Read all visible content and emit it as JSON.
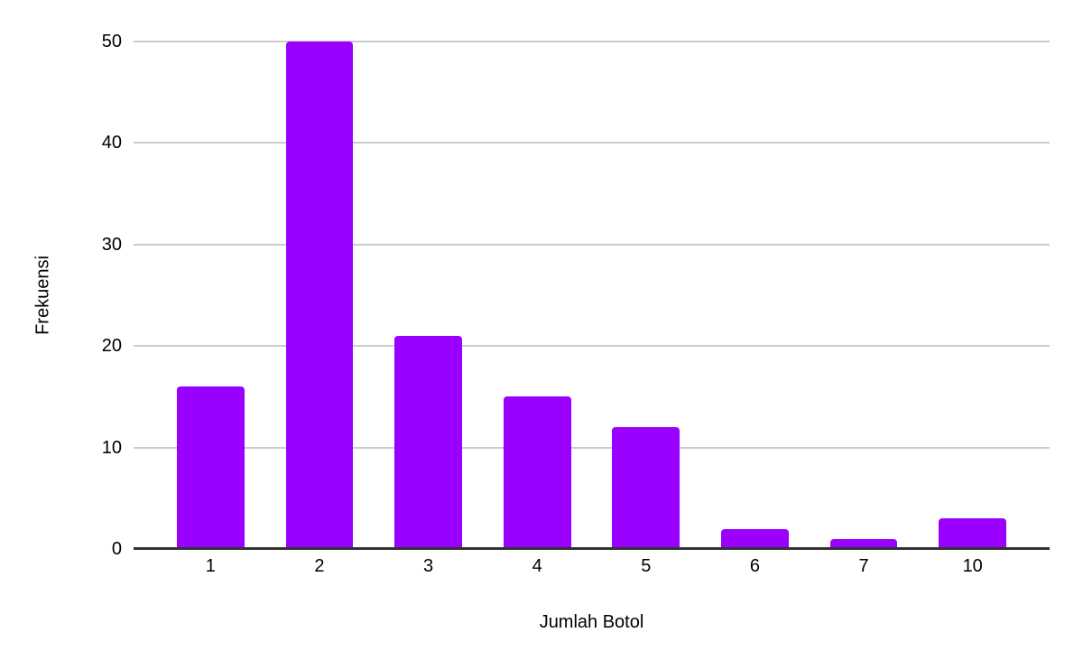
{
  "chart_data": {
    "type": "bar",
    "title": "",
    "xlabel": "Jumlah Botol",
    "ylabel": "Frekuensi",
    "categories": [
      "1",
      "2",
      "3",
      "4",
      "5",
      "6",
      "7",
      "10"
    ],
    "values": [
      16,
      50,
      21,
      15,
      12,
      2,
      1,
      3
    ],
    "ylim": [
      0,
      50
    ],
    "yticks": [
      0,
      10,
      20,
      30,
      40,
      50
    ],
    "grid": true,
    "legend": "none",
    "colors": {
      "bar": "#9900ff",
      "gridline": "#cccccc",
      "axis_line": "#333333",
      "text": "#000000",
      "background": "#ffffff"
    }
  }
}
